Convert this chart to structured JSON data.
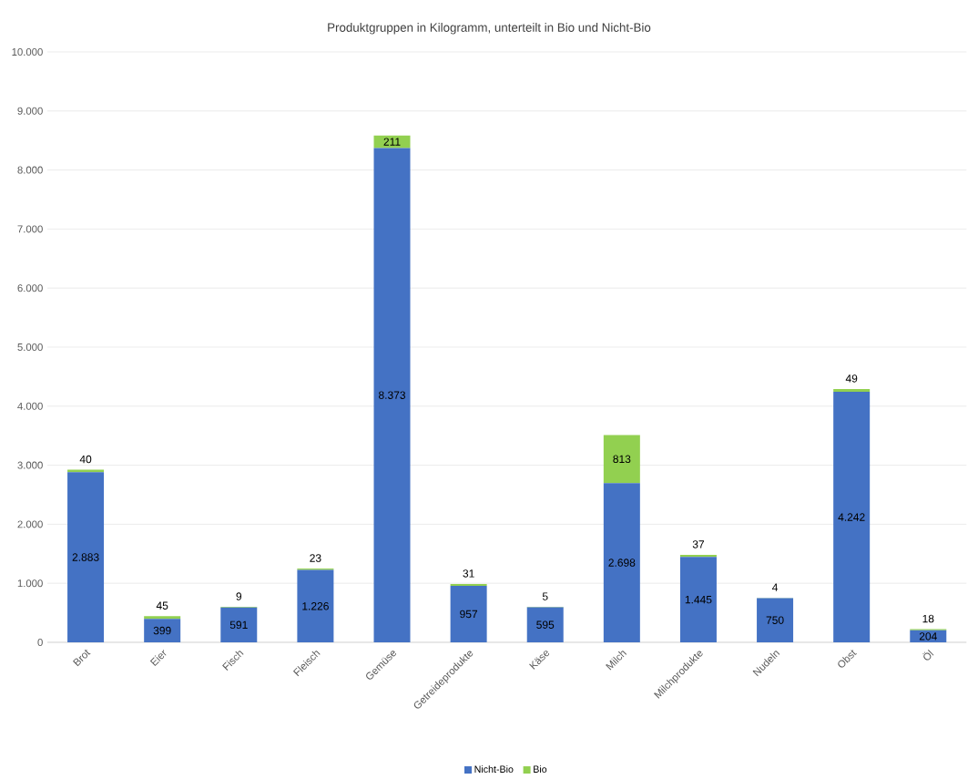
{
  "chart_data": {
    "type": "bar",
    "stacked": true,
    "title": "Produktgruppen in Kilogramm, unterteilt in Bio und Nicht-Bio",
    "categories": [
      "Brot",
      "Eier",
      "Fisch",
      "Fleisch",
      "Gemüse",
      "Getreideprodukte",
      "Käse",
      "Milch",
      "Milchprodukte",
      "Nudeln",
      "Obst",
      "Öl"
    ],
    "series": [
      {
        "name": "Nicht-Bio",
        "color": "#4472c4",
        "values": [
          2883,
          399,
          591,
          1226,
          8373,
          957,
          595,
          2698,
          1445,
          750,
          4242,
          204
        ],
        "value_labels": [
          "2.883",
          "399",
          "591",
          "1.226",
          "8.373",
          "957",
          "595",
          "2.698",
          "1.445",
          "750",
          "4.242",
          "204"
        ]
      },
      {
        "name": "Bio",
        "color": "#92d050",
        "values": [
          40,
          45,
          9,
          23,
          211,
          31,
          5,
          813,
          37,
          4,
          49,
          18
        ],
        "value_labels": [
          "40",
          "45",
          "9",
          "23",
          "211",
          "31",
          "5",
          "813",
          "37",
          "4",
          "49",
          "18"
        ]
      }
    ],
    "ylim": [
      0,
      10000
    ],
    "yticks": [
      0,
      {
        "value": 1000,
        "label": "1.000"
      },
      {
        "value": 2000,
        "label": "2.000"
      },
      {
        "value": 3000,
        "label": "3.000"
      },
      {
        "value": 4000,
        "label": "4.000"
      },
      {
        "value": 5000,
        "label": "5.000"
      },
      {
        "value": 6000,
        "label": "6.000"
      },
      {
        "value": 7000,
        "label": "7.000"
      },
      {
        "value": 8000,
        "label": "8.000"
      },
      {
        "value": 9000,
        "label": "9.000"
      },
      {
        "value": 10000,
        "label": "10.000"
      }
    ],
    "grid": "y",
    "legend": "bottom"
  }
}
